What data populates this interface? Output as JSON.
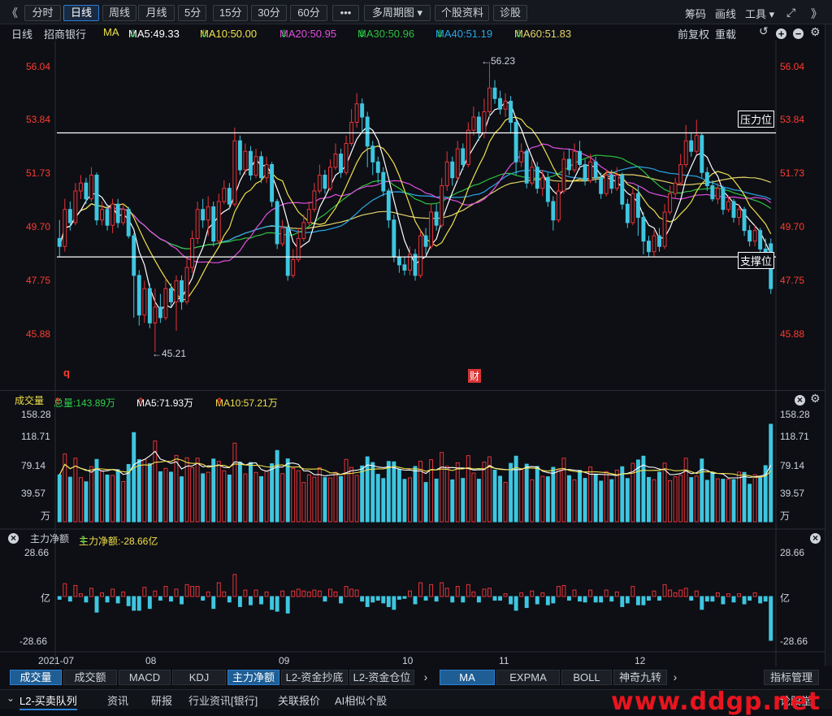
{
  "toolbar": {
    "left_arrow": "《",
    "right_arrow": "》",
    "buttons": [
      {
        "label": "分时",
        "active": false
      },
      {
        "label": "日线",
        "active": true
      },
      {
        "label": "周线",
        "active": false
      },
      {
        "label": "月线",
        "active": false
      },
      {
        "label": "5分",
        "active": false
      },
      {
        "label": "15分",
        "active": false
      },
      {
        "label": "30分",
        "active": false
      },
      {
        "label": "60分",
        "active": false
      },
      {
        "label": "•••",
        "active": false
      },
      {
        "label": "多周期图 ▾",
        "active": false
      },
      {
        "label": "个股资料",
        "active": false
      },
      {
        "label": "诊股",
        "active": false
      }
    ],
    "right_links": [
      "筹码",
      "画线",
      "工具 ▾"
    ]
  },
  "chart_header": {
    "period": "日线",
    "stock_name": "招商银行",
    "ma_label": "MA",
    "ma_items": [
      {
        "text": "MA5:49.33",
        "arrow": "⇓",
        "color": "#ffffff"
      },
      {
        "text": "MA10:50.00",
        "arrow": "⇓",
        "color": "#f1e04b"
      },
      {
        "text": "MA20:50.95",
        "arrow": "⇓",
        "color": "#e24ee0"
      },
      {
        "text": "MA30:50.96",
        "arrow": "⇓",
        "color": "#2fbf3f"
      },
      {
        "text": "MA40:51.19",
        "arrow": "⇓",
        "color": "#2aa6e8"
      },
      {
        "text": "MA60:51.83",
        "arrow": "⇓",
        "color": "#e6d46a"
      }
    ],
    "right_controls": [
      "前复权",
      "重载"
    ]
  },
  "price_axis": [
    "56.04",
    "53.84",
    "51.73",
    "49.70",
    "47.75",
    "45.88"
  ],
  "annotations": {
    "high": "←56.23",
    "low": "←45.21",
    "resistance": "压力位",
    "support": "支撑位",
    "q_mark": "q",
    "cai_mark": "财"
  },
  "volume_header": {
    "title": "成交量",
    "total": "总量:143.89万",
    "ma5": "MA5:71.93万",
    "ma10": "MA10:57.21万",
    "arrow": "⇑"
  },
  "volume_axis": [
    "158.28",
    "118.71",
    "79.14",
    "39.57",
    "万"
  ],
  "flow_header": {
    "title": "主力净额",
    "value": "主力净额:-28.66亿",
    "arrow": "⇓"
  },
  "flow_axis": [
    "28.66",
    "亿",
    "-28.66"
  ],
  "date_axis": [
    "2021-07",
    "08",
    "09",
    "10",
    "11",
    "12"
  ],
  "indicator_tabs_left": [
    {
      "label": "成交量",
      "on": true
    },
    {
      "label": "成交额",
      "on": false
    },
    {
      "label": "MACD",
      "on": false
    },
    {
      "label": "KDJ",
      "on": false
    },
    {
      "label": "主力净额",
      "on": true
    },
    {
      "label": "L2-资金抄底",
      "on": false
    },
    {
      "label": "L2-资金仓位",
      "on": false
    }
  ],
  "indicator_tabs_right": [
    {
      "label": "MA",
      "on": true
    },
    {
      "label": "EXPMA",
      "on": false
    },
    {
      "label": "BOLL",
      "on": false
    },
    {
      "label": "神奇九转",
      "on": false
    }
  ],
  "indicator_manage": "指标管理",
  "info_tabs": [
    "L2-买卖队列",
    "资讯",
    "研报",
    "行业资讯[银行]",
    "关联报价",
    "AI相似个股"
  ],
  "info_right": "论股堂",
  "watermark": "www.ddgp.net",
  "colors": {
    "up": "#e8333a",
    "down": "#3ec6e0",
    "ma5": "#ffffff",
    "ma10": "#f1e04b",
    "ma20": "#e24ee0",
    "ma30": "#2fbf3f",
    "ma40": "#2aa6e8",
    "ma60": "#e6d46a"
  },
  "chart_data": {
    "type": "candlestick",
    "price_range": [
      45.21,
      56.23
    ],
    "resistance_level": 53.5,
    "support_level": 48.8,
    "candles": [
      [
        49.5,
        49.2,
        50.2,
        48.8
      ],
      [
        49.2,
        50.6,
        51.0,
        49.0
      ],
      [
        50.6,
        50.1,
        50.9,
        49.8
      ],
      [
        50.1,
        51.3,
        51.6,
        50.0
      ],
      [
        51.3,
        51.6,
        51.9,
        51.0
      ],
      [
        51.6,
        51.0,
        51.8,
        50.8
      ],
      [
        51.0,
        51.9,
        52.2,
        50.9
      ],
      [
        51.9,
        50.2,
        52.0,
        50.0
      ],
      [
        50.2,
        50.6,
        50.9,
        50.0
      ],
      [
        50.6,
        50.0,
        50.8,
        49.8
      ],
      [
        50.0,
        50.8,
        51.0,
        49.7
      ],
      [
        50.8,
        50.1,
        51.0,
        49.9
      ],
      [
        50.1,
        50.6,
        50.8,
        50.0
      ],
      [
        50.6,
        49.6,
        50.7,
        49.5
      ],
      [
        49.6,
        48.1,
        49.7,
        46.5
      ],
      [
        48.1,
        46.6,
        48.3,
        46.2
      ],
      [
        46.6,
        47.6,
        47.9,
        46.3
      ],
      [
        47.6,
        46.3,
        47.8,
        46.1
      ],
      [
        46.3,
        46.9,
        47.6,
        45.2
      ],
      [
        46.9,
        46.5,
        47.4,
        46.3
      ],
      [
        46.5,
        47.6,
        48.0,
        46.4
      ],
      [
        47.6,
        47.1,
        47.8,
        46.9
      ],
      [
        47.1,
        47.9,
        48.1,
        46.0
      ],
      [
        47.9,
        47.1,
        48.1,
        46.8
      ],
      [
        47.1,
        48.4,
        48.8,
        47.0
      ],
      [
        48.4,
        49.5,
        49.8,
        48.2
      ],
      [
        49.5,
        50.6,
        50.9,
        49.3
      ],
      [
        50.6,
        50.2,
        51.0,
        49.9
      ],
      [
        50.2,
        50.7,
        51.1,
        49.6
      ],
      [
        50.7,
        49.4,
        50.9,
        49.2
      ],
      [
        49.4,
        50.9,
        51.2,
        49.3
      ],
      [
        50.9,
        51.4,
        51.7,
        50.8
      ],
      [
        51.4,
        50.8,
        51.6,
        50.6
      ],
      [
        50.8,
        53.2,
        53.7,
        50.7
      ],
      [
        53.2,
        52.1,
        53.4,
        51.9
      ],
      [
        52.1,
        52.8,
        53.1,
        51.9
      ],
      [
        52.8,
        51.9,
        53.0,
        51.7
      ],
      [
        51.9,
        52.6,
        52.9,
        51.8
      ],
      [
        52.6,
        51.8,
        52.8,
        51.6
      ],
      [
        51.8,
        52.3,
        52.6,
        51.6
      ],
      [
        52.3,
        50.9,
        52.4,
        50.7
      ],
      [
        50.9,
        49.3,
        51.0,
        49.1
      ],
      [
        49.3,
        49.9,
        50.2,
        49.2
      ],
      [
        49.9,
        48.1,
        50.0,
        47.9
      ],
      [
        48.1,
        48.7,
        49.1,
        48.0
      ],
      [
        48.7,
        49.5,
        49.9,
        48.6
      ],
      [
        49.5,
        50.1,
        50.4,
        49.4
      ],
      [
        50.1,
        50.6,
        50.9,
        50.0
      ],
      [
        50.6,
        51.3,
        51.6,
        50.5
      ],
      [
        51.3,
        51.9,
        52.3,
        51.2
      ],
      [
        51.9,
        51.4,
        52.1,
        51.2
      ],
      [
        51.4,
        52.2,
        52.5,
        51.3
      ],
      [
        52.2,
        52.7,
        53.1,
        52.1
      ],
      [
        52.7,
        52.0,
        52.9,
        51.8
      ],
      [
        52.0,
        53.1,
        53.4,
        51.9
      ],
      [
        53.1,
        53.9,
        54.4,
        53.0
      ],
      [
        53.9,
        54.6,
        55.0,
        53.7
      ],
      [
        54.6,
        54.1,
        54.8,
        53.5
      ],
      [
        54.1,
        53.0,
        54.3,
        52.2
      ],
      [
        53.0,
        52.4,
        53.2,
        51.9
      ],
      [
        52.4,
        52.0,
        52.6,
        51.6
      ],
      [
        52.0,
        51.3,
        52.2,
        51.1
      ],
      [
        51.3,
        50.2,
        51.4,
        49.9
      ],
      [
        50.2,
        48.8,
        50.4,
        48.6
      ],
      [
        48.8,
        48.5,
        49.1,
        48.2
      ],
      [
        48.5,
        48.3,
        48.8,
        48.1
      ],
      [
        48.3,
        48.9,
        49.2,
        48.1
      ],
      [
        48.9,
        48.1,
        49.1,
        47.9
      ],
      [
        48.1,
        49.6,
        49.8,
        48.0
      ],
      [
        49.6,
        49.2,
        49.9,
        48.9
      ],
      [
        49.2,
        50.5,
        50.8,
        49.1
      ],
      [
        50.5,
        50.0,
        50.8,
        49.8
      ],
      [
        50.0,
        51.5,
        51.8,
        49.9
      ],
      [
        51.5,
        52.4,
        52.8,
        51.3
      ],
      [
        52.4,
        51.8,
        52.6,
        51.5
      ],
      [
        51.8,
        52.9,
        53.2,
        51.7
      ],
      [
        52.9,
        52.3,
        53.1,
        52.1
      ],
      [
        52.3,
        53.6,
        53.9,
        52.2
      ],
      [
        53.6,
        54.1,
        54.5,
        53.4
      ],
      [
        54.1,
        53.5,
        54.3,
        53.2
      ],
      [
        53.5,
        54.3,
        54.8,
        53.3
      ],
      [
        54.3,
        55.2,
        56.2,
        54.1
      ],
      [
        55.2,
        54.8,
        55.5,
        54.6
      ],
      [
        54.8,
        54.4,
        55.1,
        54.2
      ],
      [
        54.4,
        54.7,
        55.0,
        54.1
      ],
      [
        54.7,
        53.9,
        54.9,
        53.5
      ],
      [
        53.9,
        52.4,
        54.0,
        51.9
      ],
      [
        52.4,
        52.8,
        53.1,
        52.2
      ],
      [
        52.8,
        51.6,
        52.9,
        51.4
      ],
      [
        51.6,
        52.2,
        52.5,
        51.5
      ],
      [
        52.2,
        51.4,
        52.4,
        51.2
      ],
      [
        51.4,
        51.8,
        52.1,
        51.1
      ],
      [
        51.8,
        50.9,
        52.0,
        50.7
      ],
      [
        50.9,
        50.2,
        51.1,
        49.8
      ],
      [
        50.2,
        51.3,
        51.6,
        50.1
      ],
      [
        51.3,
        52.5,
        52.8,
        51.2
      ],
      [
        52.5,
        52.1,
        52.9,
        51.9
      ],
      [
        52.1,
        52.8,
        53.1,
        52.0
      ],
      [
        52.8,
        52.3,
        53.2,
        52.1
      ],
      [
        52.3,
        51.7,
        52.5,
        51.5
      ],
      [
        51.7,
        52.4,
        52.7,
        51.6
      ],
      [
        52.4,
        51.8,
        52.6,
        51.6
      ],
      [
        51.8,
        51.2,
        52.0,
        51.0
      ],
      [
        51.2,
        51.9,
        52.1,
        51.1
      ],
      [
        51.9,
        51.4,
        52.1,
        51.2
      ],
      [
        51.4,
        51.9,
        52.2,
        51.3
      ],
      [
        51.9,
        50.8,
        52.0,
        50.6
      ],
      [
        50.8,
        50.1,
        51.0,
        49.9
      ],
      [
        50.1,
        51.2,
        51.4,
        50.0
      ],
      [
        51.2,
        50.3,
        51.5,
        49.6
      ],
      [
        50.3,
        49.4,
        50.5,
        48.9
      ],
      [
        49.4,
        49.0,
        49.6,
        48.8
      ],
      [
        49.0,
        49.6,
        49.8,
        48.8
      ],
      [
        49.6,
        49.2,
        49.9,
        49.0
      ],
      [
        49.2,
        50.5,
        50.8,
        49.1
      ],
      [
        50.5,
        51.2,
        51.5,
        50.4
      ],
      [
        51.2,
        51.6,
        51.8,
        51.0
      ],
      [
        51.6,
        52.3,
        52.7,
        51.5
      ],
      [
        52.3,
        53.2,
        53.8,
        52.2
      ],
      [
        53.2,
        52.8,
        53.5,
        52.6
      ],
      [
        52.8,
        53.4,
        54.0,
        52.7
      ],
      [
        53.4,
        52.0,
        53.5,
        51.8
      ],
      [
        52.0,
        51.5,
        52.2,
        51.3
      ],
      [
        51.5,
        51.0,
        51.7,
        50.9
      ],
      [
        51.0,
        51.4,
        51.6,
        50.8
      ],
      [
        51.4,
        50.6,
        51.5,
        50.4
      ],
      [
        50.6,
        50.9,
        51.1,
        50.5
      ],
      [
        50.9,
        50.3,
        51.0,
        50.1
      ],
      [
        50.3,
        50.6,
        50.8,
        50.0
      ],
      [
        50.6,
        49.8,
        50.7,
        49.6
      ],
      [
        49.8,
        49.4,
        50.0,
        49.2
      ],
      [
        49.4,
        49.8,
        50.0,
        49.2
      ],
      [
        49.8,
        49.1,
        49.9,
        48.9
      ],
      [
        49.1,
        48.6,
        49.5,
        48.4
      ],
      [
        49.3,
        47.6,
        49.5,
        47.4
      ]
    ]
  }
}
